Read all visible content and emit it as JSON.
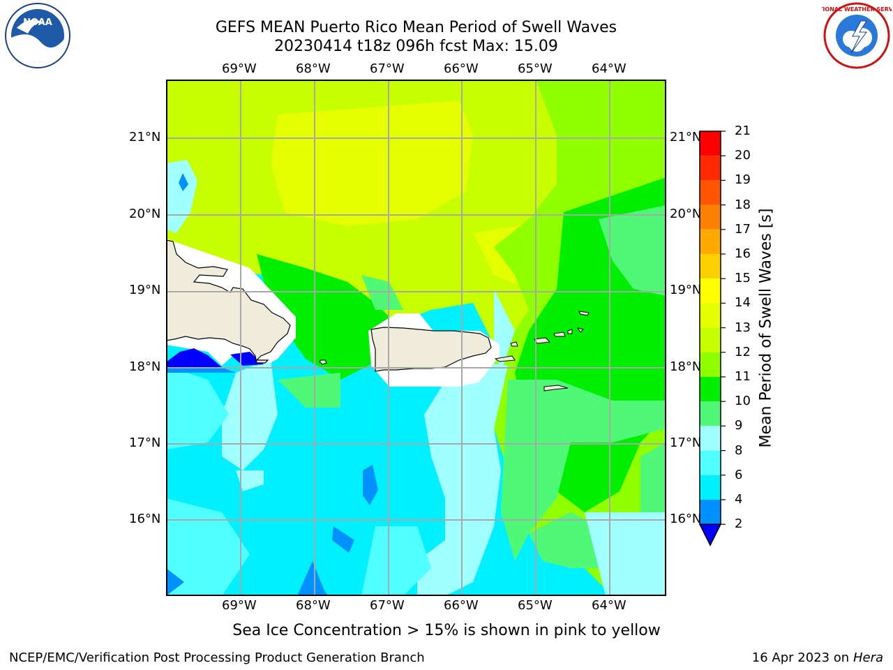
{
  "title": {
    "line1": "GEFS MEAN Puerto Rico Mean Period of Swell Waves",
    "line2": "20230414 t18z 096h fcst   Max: 15.09"
  },
  "logos": {
    "left": {
      "name": "noaa-logo",
      "text": "NOAA"
    },
    "right": {
      "name": "nws-logo",
      "text": "NATIONAL WEATHER SERVICE"
    }
  },
  "axes": {
    "longitudes": [
      "69°W",
      "68°W",
      "67°W",
      "66°W",
      "65°W",
      "64°W"
    ],
    "latitudes": [
      "21°N",
      "20°N",
      "19°N",
      "18°N",
      "17°N",
      "16°N"
    ]
  },
  "colorbar": {
    "title": "Mean Period of Swell Waves [s]",
    "levels": [
      "21",
      "20",
      "19",
      "18",
      "17",
      "16",
      "15",
      "14",
      "13",
      "12",
      "11",
      "10",
      "9",
      "8",
      "6",
      "4",
      "2"
    ],
    "colors": [
      "#ff0000",
      "#ff2a00",
      "#ff5500",
      "#ff8000",
      "#ffaa00",
      "#ffd000",
      "#ffff00",
      "#e6ff00",
      "#c8ff00",
      "#90ff00",
      "#00ee00",
      "#50f878",
      "#a0ffff",
      "#50ffff",
      "#00f0ff",
      "#0090ff",
      "#0000ff"
    ]
  },
  "colors": {
    "land": "#efecdc",
    "grid": "#a8a8a8",
    "mask": "#ffffff"
  },
  "note": "Sea Ice Concentration > 15% is shown in pink to yellow",
  "footer": {
    "left": "NCEP/EMC/Verification Post Processing Product Generation Branch",
    "date": "16 Apr 2023 on ",
    "machine": "Hera"
  }
}
